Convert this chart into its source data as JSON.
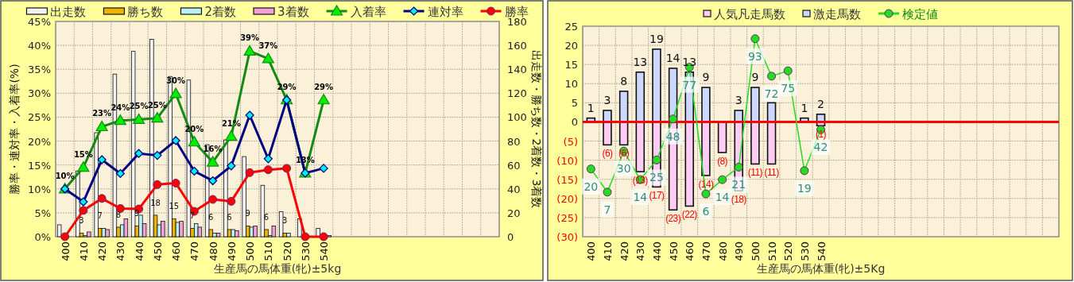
{
  "chart_data": [
    {
      "type": "bar",
      "xlabel": "生産馬の馬体重(牝)±5kg",
      "ylabel": "勝率・連対率・入着率(%)",
      "y2label": "出走数・勝ち数・2着数・3着数",
      "categories": [
        "400",
        "410",
        "420",
        "430",
        "440",
        "450",
        "460",
        "470",
        "480",
        "490",
        "500",
        "510",
        "520",
        "530",
        "540",
        null,
        null,
        null,
        null,
        null,
        null,
        null,
        null,
        null
      ],
      "ylim": [
        0,
        45
      ],
      "yticks": [
        {
          "value": 0,
          "label": "0%"
        },
        {
          "value": 5,
          "label": "5%"
        },
        {
          "value": 10,
          "label": "10%"
        },
        {
          "value": 15,
          "label": "15%"
        },
        {
          "value": 20,
          "label": "20%"
        },
        {
          "value": 25,
          "label": "25%"
        },
        {
          "value": 30,
          "label": "30%"
        },
        {
          "value": 35,
          "label": "35%"
        },
        {
          "value": 40,
          "label": "40%"
        },
        {
          "value": 45,
          "label": "45%"
        }
      ],
      "y2lim": [
        0,
        180
      ],
      "y2ticks": [
        0,
        20,
        40,
        60,
        80,
        100,
        120,
        140,
        160,
        180
      ],
      "grid": true,
      "legend": "top",
      "series": [
        {
          "name": "出走数",
          "axis": "y2",
          "color": "#f2f2f2",
          "values": [
            10,
            55,
            87,
            136,
            155,
            165,
            134,
            131,
            77,
            81,
            67,
            43,
            21,
            15,
            7,
            null,
            null,
            null,
            null,
            null,
            null,
            null,
            null,
            null
          ]
        },
        {
          "name": "勝ち数",
          "axis": "y2",
          "color": "#f0b400",
          "values": [
            0,
            3,
            7,
            8,
            9,
            18,
            15,
            7,
            6,
            6,
            9,
            6,
            3,
            0,
            0,
            null,
            null,
            null,
            null,
            null,
            null,
            null,
            null,
            null
          ],
          "value_labels": [
            null,
            "3",
            "7",
            "8",
            "9",
            "18",
            "15",
            "7",
            "6",
            "6",
            "9",
            "6",
            "3",
            null,
            null,
            null,
            null,
            null,
            null,
            null,
            null,
            null,
            null,
            null
          ]
        },
        {
          "name": "2着数",
          "axis": "y2",
          "color": "#b8f0f4",
          "values": [
            null,
            1,
            7,
            10,
            18,
            10,
            12,
            11,
            3,
            6,
            8,
            1,
            3,
            null,
            null,
            null,
            null,
            null,
            null,
            null,
            null,
            null,
            null,
            null
          ]
        },
        {
          "name": "3着数",
          "axis": "y2",
          "color": "#f4a0d8",
          "values": [
            0,
            4,
            6,
            15,
            11,
            13,
            13,
            8,
            3,
            5,
            9,
            9,
            0,
            0,
            1,
            null,
            null,
            null,
            null,
            null,
            null,
            null,
            null,
            null
          ]
        },
        {
          "name": "入着率",
          "type": "line",
          "marker": "triangle",
          "color": "#148a14",
          "values": [
            10,
            14.5,
            23,
            24.3,
            24.5,
            24.8,
            29.9,
            19.8,
            15.6,
            21,
            38.8,
            37.2,
            28.6,
            13.3,
            28.6,
            null,
            null,
            null,
            null,
            null,
            null,
            null,
            null,
            null
          ],
          "value_labels": [
            "10%",
            "15%",
            "23%",
            "24%",
            "25%",
            "25%",
            "30%",
            "20%",
            "16%",
            "21%",
            "39%",
            "37%",
            "29%",
            "13%",
            "29%",
            null,
            null,
            null,
            null,
            null,
            null,
            null,
            null,
            null
          ]
        },
        {
          "name": "連対率",
          "type": "line",
          "marker": "diamond",
          "color": "#000080",
          "values": [
            10,
            7.3,
            16.1,
            13.2,
            17.4,
            17.0,
            20.1,
            13.7,
            11.7,
            14.8,
            25.4,
            16.3,
            28.6,
            13.3,
            14.3,
            null,
            null,
            null,
            null,
            null,
            null,
            null,
            null,
            null
          ]
        },
        {
          "name": "勝率",
          "type": "line",
          "marker": "circle",
          "color": "#ff0000",
          "values": [
            0,
            5.5,
            8.0,
            5.9,
            5.8,
            10.9,
            11.2,
            5.3,
            7.8,
            7.4,
            13.4,
            14.0,
            14.3,
            0,
            0,
            null,
            null,
            null,
            null,
            null,
            null,
            null,
            null,
            null
          ]
        }
      ]
    },
    {
      "type": "bar",
      "stacked": true,
      "xlabel": "生産馬の馬体重(牝)±5Kg",
      "categories": [
        "400",
        "410",
        "420",
        "430",
        "440",
        "450",
        "460",
        "470",
        "480",
        "490",
        "500",
        "510",
        "520",
        "530",
        "540",
        null,
        null,
        null,
        null,
        null,
        null,
        null,
        null,
        null,
        null,
        null,
        null,
        null,
        null
      ],
      "ylim": [
        -30,
        25
      ],
      "yticks": [
        25,
        20,
        15,
        10,
        5,
        0,
        {
          "value": -5,
          "label": "(5)"
        },
        {
          "value": -10,
          "label": "(10)"
        },
        {
          "value": -15,
          "label": "(15)"
        },
        {
          "value": -20,
          "label": "(20)"
        },
        {
          "value": -25,
          "label": "(25)"
        },
        {
          "value": -30,
          "label": "(30)"
        }
      ],
      "y2lim": [
        -18,
        100
      ],
      "grid": true,
      "legend": "top",
      "ref_lines": [
        {
          "axis": "y",
          "value": 0,
          "color": "#ff0000"
        }
      ],
      "series": [
        {
          "name": "人気凡走馬数",
          "color": "#ffccf4",
          "values": [
            null,
            -6,
            -6,
            -13,
            -17,
            -23,
            -22,
            -14,
            -8,
            -18,
            -11,
            -11,
            null,
            null,
            -1,
            null,
            null,
            null,
            null,
            null,
            null,
            null,
            null,
            null,
            null,
            null,
            null,
            null,
            null
          ],
          "value_labels": [
            null,
            "(6)",
            "(6)",
            "(13)",
            "(17)",
            "(23)",
            "(22)",
            "(14)",
            "(8)",
            "(18)",
            "(11)",
            "(11)",
            null,
            null,
            "(1)",
            null,
            null,
            null,
            null,
            null,
            null,
            null,
            null,
            null,
            null,
            null,
            null,
            null,
            null
          ]
        },
        {
          "name": "激走馬数",
          "color": "#ccd8ff",
          "values": [
            1,
            3,
            8,
            13,
            19,
            14,
            13,
            9,
            null,
            3,
            9,
            5,
            null,
            1,
            2,
            null,
            null,
            null,
            null,
            null,
            null,
            null,
            null,
            null,
            null,
            null,
            null,
            null,
            null
          ],
          "value_labels": [
            "1",
            "3",
            "8",
            "13",
            "19",
            "14",
            "13",
            "9",
            null,
            "3",
            "9",
            null,
            null,
            "1",
            "2",
            null,
            null,
            null,
            null,
            null,
            null,
            null,
            null,
            null,
            null,
            null,
            null,
            null,
            null
          ]
        },
        {
          "name": "検定値",
          "type": "line",
          "axis": "y2",
          "marker": "circle",
          "color": "#22dd22",
          "values": [
            20,
            7,
            30,
            14,
            25,
            48,
            77,
            6,
            14,
            21,
            93,
            72,
            75,
            19,
            42,
            null,
            null,
            null,
            null,
            null,
            null,
            null,
            null,
            null,
            null,
            null,
            null,
            null,
            null
          ],
          "value_labels": [
            "20",
            "7",
            "30",
            "14",
            "25",
            "48",
            "77",
            "6",
            "14",
            "21",
            "93",
            "72",
            "75",
            "19",
            "42",
            null,
            null,
            null,
            null,
            null,
            null,
            null,
            null,
            null,
            null,
            null,
            null,
            null,
            null
          ]
        }
      ]
    }
  ]
}
